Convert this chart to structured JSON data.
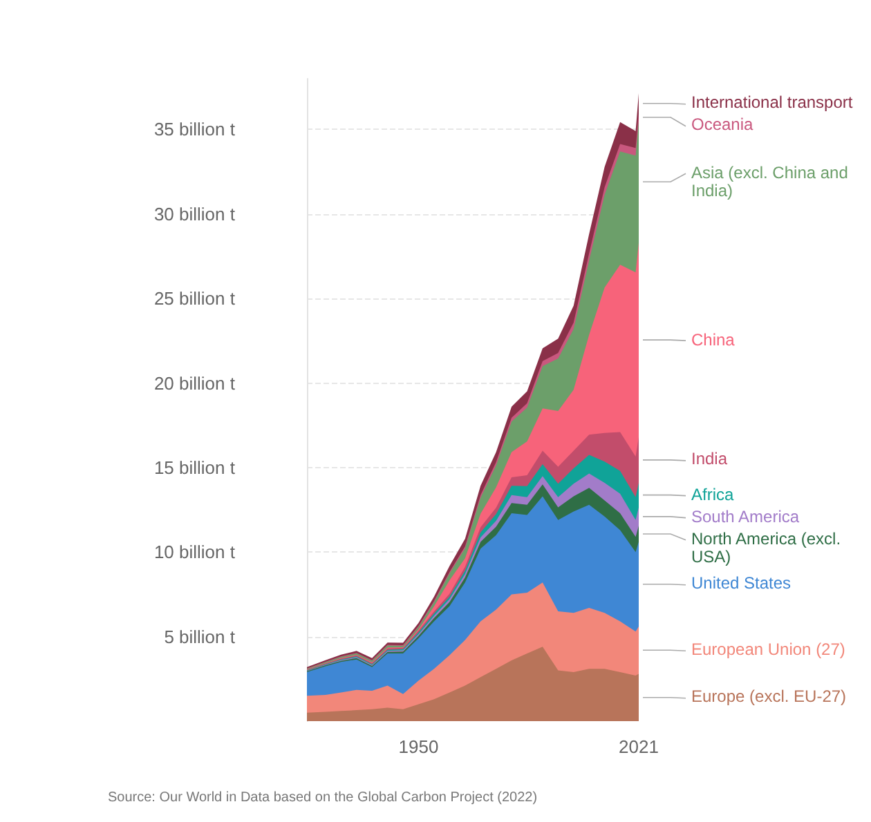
{
  "chart_data": {
    "type": "area",
    "stacked": true,
    "x": [
      1914,
      1920,
      1925,
      1930,
      1935,
      1940,
      1945,
      1950,
      1955,
      1960,
      1965,
      1970,
      1975,
      1980,
      1985,
      1990,
      1995,
      2000,
      2005,
      2010,
      2015,
      2020,
      2021
    ],
    "series": [
      {
        "name": "Europe (excl. EU-27)",
        "color": "#b8745a",
        "values": [
          0.5,
          0.55,
          0.6,
          0.65,
          0.7,
          0.8,
          0.7,
          1.0,
          1.3,
          1.7,
          2.1,
          2.6,
          3.1,
          3.6,
          4.0,
          4.4,
          3.0,
          2.9,
          3.1,
          3.1,
          2.9,
          2.7,
          2.8
        ]
      },
      {
        "name": "European Union (27)",
        "color": "#f2877a",
        "values": [
          1.0,
          1.0,
          1.1,
          1.2,
          1.1,
          1.3,
          0.9,
          1.4,
          1.8,
          2.2,
          2.7,
          3.3,
          3.5,
          3.9,
          3.6,
          3.8,
          3.5,
          3.5,
          3.6,
          3.3,
          3.0,
          2.6,
          2.8
        ]
      },
      {
        "name": "United States",
        "color": "#3f87d4",
        "values": [
          1.4,
          1.7,
          1.8,
          1.8,
          1.4,
          1.9,
          2.4,
          2.5,
          2.8,
          2.9,
          3.4,
          4.3,
          4.4,
          4.8,
          4.6,
          5.1,
          5.4,
          6.0,
          6.1,
          5.7,
          5.4,
          4.7,
          5.0
        ]
      },
      {
        "name": "North America (excl. USA)",
        "color": "#2f6e46",
        "values": [
          0.05,
          0.06,
          0.07,
          0.08,
          0.07,
          0.1,
          0.12,
          0.15,
          0.2,
          0.25,
          0.3,
          0.4,
          0.5,
          0.6,
          0.6,
          0.7,
          0.75,
          0.9,
          1.0,
          0.95,
          1.0,
          0.9,
          0.95
        ]
      },
      {
        "name": "South America",
        "color": "#a27cc9",
        "values": [
          0.02,
          0.03,
          0.04,
          0.05,
          0.05,
          0.06,
          0.07,
          0.1,
          0.13,
          0.17,
          0.2,
          0.27,
          0.35,
          0.47,
          0.45,
          0.5,
          0.6,
          0.75,
          0.85,
          1.05,
          1.15,
          1.0,
          1.1
        ]
      },
      {
        "name": "Africa",
        "color": "#10a398",
        "values": [
          0.03,
          0.03,
          0.04,
          0.05,
          0.05,
          0.06,
          0.07,
          0.1,
          0.13,
          0.15,
          0.2,
          0.3,
          0.4,
          0.55,
          0.65,
          0.7,
          0.8,
          0.9,
          1.1,
          1.25,
          1.35,
          1.35,
          1.45
        ]
      },
      {
        "name": "India",
        "color": "#c24d6b",
        "values": [
          0.03,
          0.04,
          0.05,
          0.06,
          0.07,
          0.08,
          0.08,
          0.1,
          0.13,
          0.17,
          0.23,
          0.3,
          0.38,
          0.5,
          0.65,
          0.8,
          1.0,
          1.05,
          1.2,
          1.7,
          2.3,
          2.4,
          2.7
        ]
      },
      {
        "name": "China",
        "color": "#f7637a",
        "values": [
          0.02,
          0.02,
          0.03,
          0.03,
          0.04,
          0.05,
          0.03,
          0.08,
          0.3,
          0.8,
          0.5,
          0.8,
          1.2,
          1.5,
          2.0,
          2.5,
          3.3,
          3.6,
          5.9,
          8.6,
          9.9,
          10.9,
          11.5
        ]
      },
      {
        "name": "Asia (excl. China and India)",
        "color": "#6c9f6a",
        "values": [
          0.05,
          0.06,
          0.07,
          0.09,
          0.1,
          0.12,
          0.08,
          0.15,
          0.25,
          0.4,
          0.6,
          0.95,
          1.3,
          1.8,
          2.0,
          2.5,
          3.1,
          3.6,
          4.4,
          5.5,
          6.7,
          6.9,
          7.2
        ]
      },
      {
        "name": "Oceania",
        "color": "#c9587e",
        "values": [
          0.02,
          0.02,
          0.03,
          0.03,
          0.03,
          0.04,
          0.04,
          0.05,
          0.07,
          0.09,
          0.11,
          0.15,
          0.19,
          0.23,
          0.26,
          0.3,
          0.33,
          0.38,
          0.42,
          0.44,
          0.44,
          0.45,
          0.44
        ]
      },
      {
        "name": "International transport",
        "color": "#8a3048",
        "values": [
          0.08,
          0.1,
          0.1,
          0.12,
          0.12,
          0.14,
          0.15,
          0.18,
          0.25,
          0.35,
          0.45,
          0.55,
          0.6,
          0.65,
          0.7,
          0.75,
          0.85,
          1.0,
          1.15,
          1.2,
          1.3,
          1.0,
          1.2
        ]
      }
    ],
    "xlim": [
      1914,
      2021
    ],
    "xticks": [
      1950,
      2021
    ],
    "ylim": [
      0,
      38
    ],
    "yticks": [
      {
        "value": 5,
        "label": "5 billion t"
      },
      {
        "value": 10,
        "label": "10 billion t"
      },
      {
        "value": 15,
        "label": "15 billion t"
      },
      {
        "value": 20,
        "label": "20 billion t"
      },
      {
        "value": 25,
        "label": "25 billion t"
      },
      {
        "value": 30,
        "label": "30 billion t"
      },
      {
        "value": 35,
        "label": "35 billion t"
      }
    ],
    "grid": "y",
    "legend": "right",
    "annotations": [
      "Source: Our World in Data based on the Global Carbon Project (2022)"
    ]
  }
}
